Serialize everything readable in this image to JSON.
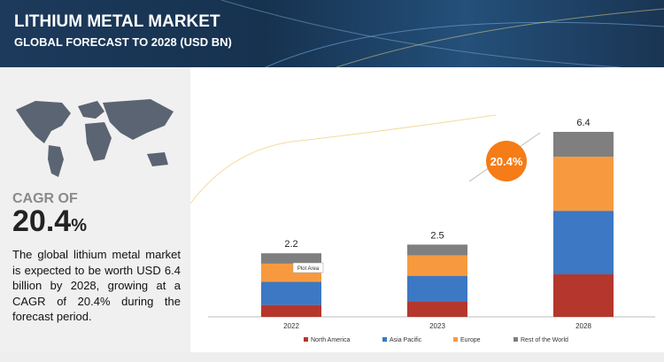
{
  "header": {
    "title": "LITHIUM METAL MARKET",
    "subtitle": "GLOBAL FORECAST TO 2028 (USD BN)"
  },
  "sidebar": {
    "cagr_label": "CAGR OF",
    "cagr_value": 20.4,
    "cagr_unit": "%",
    "description": "The global lithium metal market is expected to be worth USD 6.4 billion by 2028, growing at a CAGR of 20.4% during the forecast period."
  },
  "chart_data": {
    "type": "bar",
    "stacked": true,
    "categories": [
      "2022",
      "2023",
      "2028"
    ],
    "series": [
      {
        "name": "North America",
        "color": "#b5362c",
        "values": [
          0.41,
          0.52,
          1.47
        ]
      },
      {
        "name": "Asia Pacific",
        "color": "#3c78c3",
        "values": [
          0.8,
          0.9,
          2.2
        ]
      },
      {
        "name": "Europe",
        "color": "#f79a3f",
        "values": [
          0.63,
          0.71,
          1.87
        ]
      },
      {
        "name": "Rest of the World",
        "color": "#7f7f7f",
        "values": [
          0.36,
          0.37,
          0.86
        ]
      }
    ],
    "totals": [
      2.2,
      2.5,
      6.4
    ],
    "annotation": "20.4%",
    "tooltip": "Plot Area",
    "legend": "bottom"
  }
}
